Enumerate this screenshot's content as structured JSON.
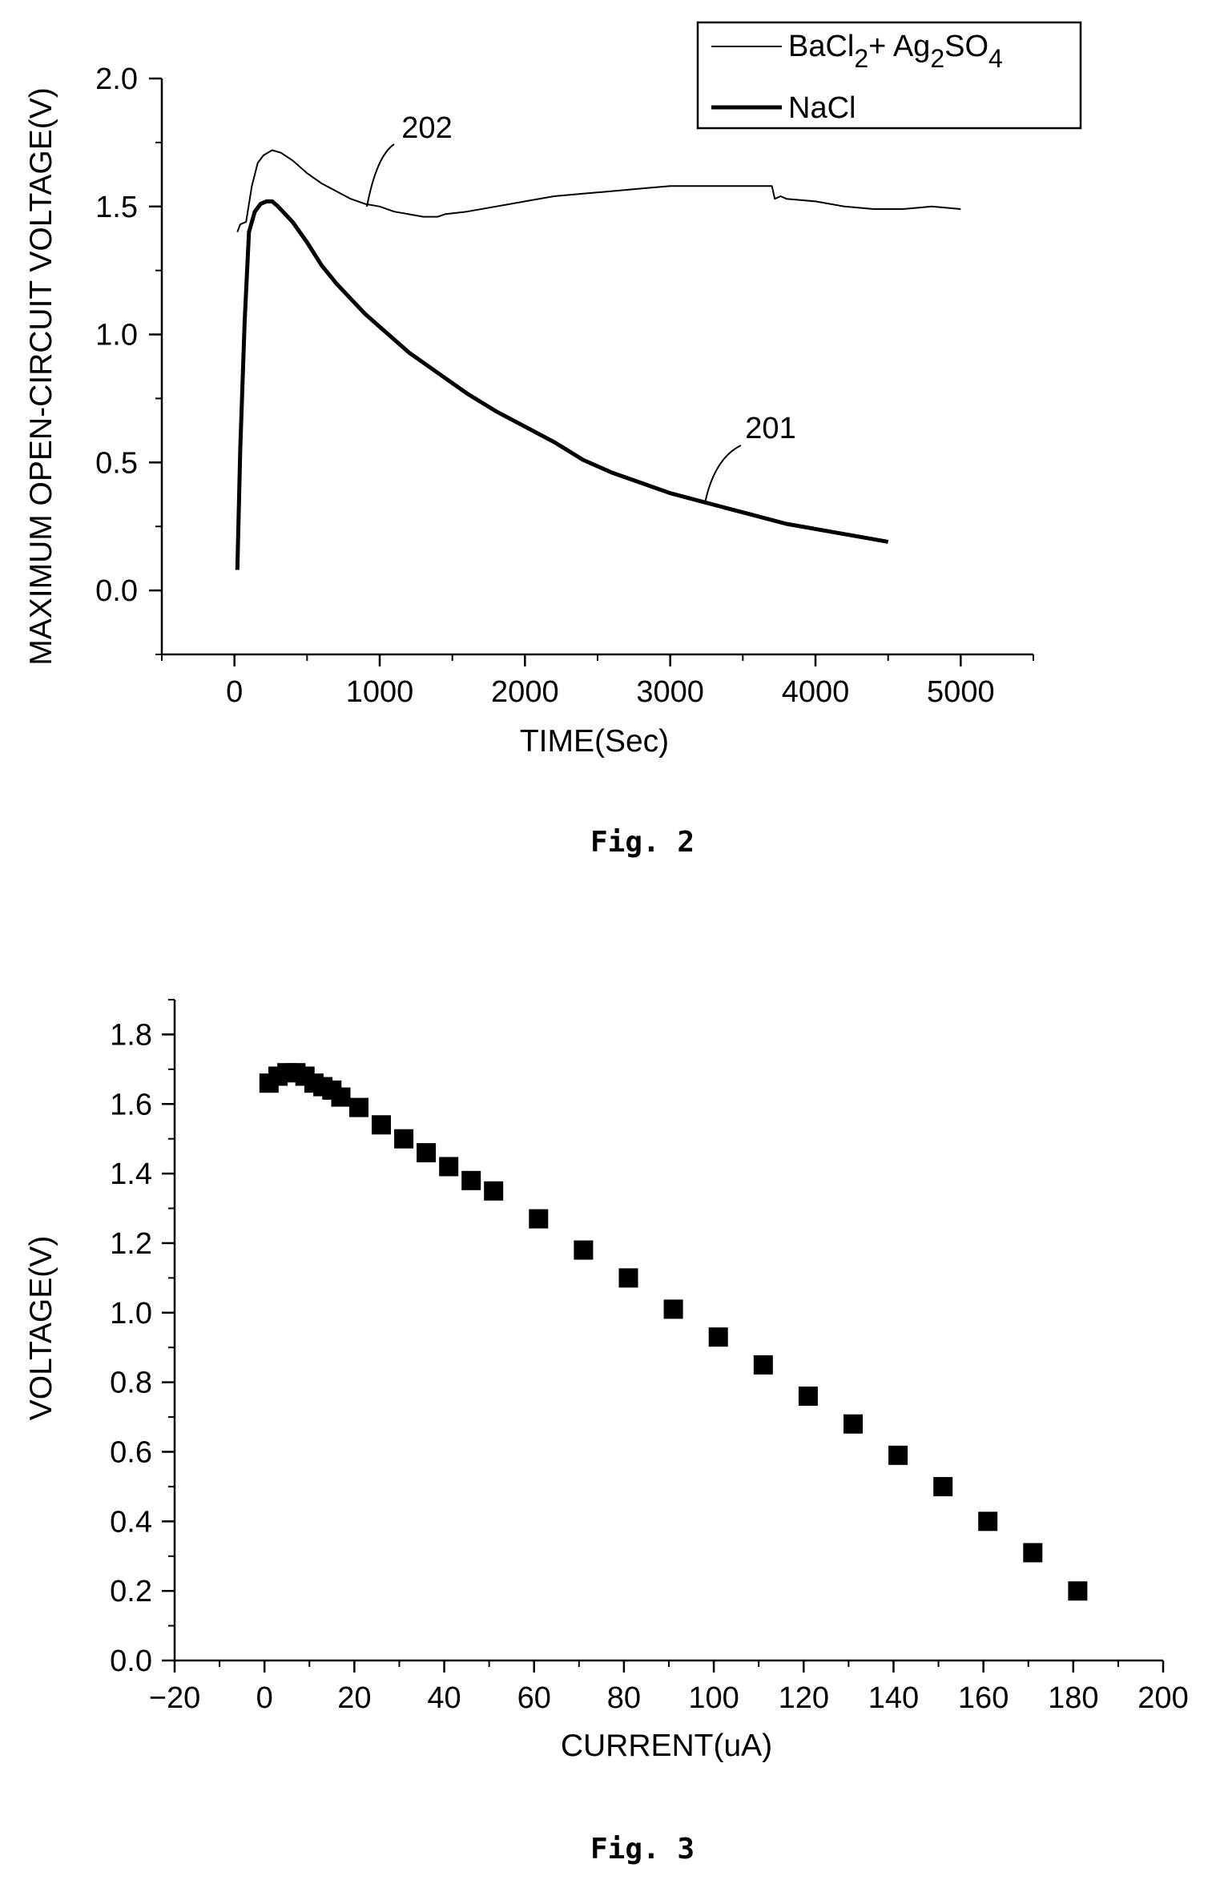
{
  "figures": {
    "fig2": {
      "caption": "Fig. 2"
    },
    "fig3": {
      "caption": "Fig. 3"
    }
  },
  "chart_data": [
    {
      "type": "line",
      "xlabel": "TIME(Sec)",
      "ylabel": "MAXIMUM OPEN-CIRCUIT VOLTAGE(V)",
      "xlim": [
        -500,
        5500
      ],
      "ylim": [
        -0.25,
        2.0
      ],
      "xticks": [
        0,
        1000,
        2000,
        3000,
        4000,
        5000
      ],
      "xtick_labels": [
        "0",
        "1000",
        "2000",
        "3000",
        "4000",
        "5000"
      ],
      "yticks": [
        0.0,
        0.5,
        1.0,
        1.5,
        2.0
      ],
      "ytick_labels": [
        "0.0",
        "0.5",
        "1.0",
        "1.5",
        "2.0"
      ],
      "grid": false,
      "legend_position": "top-right",
      "series": [
        {
          "name": "BaCl2+ Ag2SO4",
          "legend_parts": {
            "t1": "BaCl",
            "s1": "2",
            "t2": "+ Ag",
            "s2": "2",
            "t3": "SO",
            "s3": "4"
          },
          "callout": "202",
          "style": "thin",
          "x": [
            20,
            40,
            80,
            120,
            160,
            200,
            260,
            320,
            400,
            500,
            600,
            700,
            800,
            900,
            1000,
            1100,
            1200,
            1300,
            1400,
            1450,
            1600,
            1800,
            2000,
            2200,
            2400,
            2600,
            2800,
            3000,
            3200,
            3400,
            3700,
            3720,
            3760,
            3800,
            4000,
            4200,
            4400,
            4600,
            4800,
            5000
          ],
          "y": [
            1.4,
            1.43,
            1.44,
            1.58,
            1.67,
            1.7,
            1.72,
            1.71,
            1.68,
            1.63,
            1.59,
            1.56,
            1.53,
            1.51,
            1.5,
            1.48,
            1.47,
            1.46,
            1.46,
            1.47,
            1.48,
            1.5,
            1.52,
            1.54,
            1.55,
            1.56,
            1.57,
            1.58,
            1.58,
            1.58,
            1.58,
            1.53,
            1.54,
            1.53,
            1.52,
            1.5,
            1.49,
            1.49,
            1.5,
            1.49
          ]
        },
        {
          "name": "NaCl",
          "callout": "201",
          "style": "thick",
          "x": [
            20,
            40,
            70,
            100,
            140,
            180,
            220,
            260,
            300,
            400,
            500,
            600,
            700,
            800,
            900,
            1000,
            1200,
            1400,
            1600,
            1800,
            2000,
            2200,
            2400,
            2600,
            2800,
            3000,
            3200,
            3400,
            3600,
            3800,
            4000,
            4200,
            4400,
            4500
          ],
          "y": [
            0.08,
            0.55,
            1.05,
            1.4,
            1.48,
            1.51,
            1.52,
            1.52,
            1.5,
            1.44,
            1.36,
            1.27,
            1.2,
            1.14,
            1.08,
            1.03,
            0.93,
            0.85,
            0.77,
            0.7,
            0.64,
            0.58,
            0.51,
            0.46,
            0.42,
            0.38,
            0.35,
            0.32,
            0.29,
            0.26,
            0.24,
            0.22,
            0.2,
            0.19
          ]
        }
      ]
    },
    {
      "type": "scatter",
      "xlabel": "CURRENT(uA)",
      "ylabel": "VOLTAGE(V)",
      "xlim": [
        -20,
        200
      ],
      "ylim": [
        0.0,
        1.9
      ],
      "xticks": [
        -20,
        0,
        20,
        40,
        60,
        80,
        100,
        120,
        140,
        160,
        180,
        200
      ],
      "xtick_labels": [
        "-20",
        "0",
        "20",
        "40",
        "60",
        "80",
        "100",
        "120",
        "140",
        "160",
        "180",
        "200"
      ],
      "yticks": [
        0.0,
        0.2,
        0.4,
        0.6,
        0.8,
        1.0,
        1.2,
        1.4,
        1.6,
        1.8
      ],
      "ytick_labels": [
        "0.0",
        "0.2",
        "0.4",
        "0.6",
        "0.8",
        "1.0",
        "1.2",
        "1.4",
        "1.6",
        "1.8"
      ],
      "grid": false,
      "marker": "square",
      "x": [
        1,
        3,
        5,
        7,
        9,
        11,
        13,
        15,
        17,
        21,
        26,
        31,
        36,
        41,
        46,
        51,
        61,
        71,
        81,
        91,
        101,
        111,
        121,
        131,
        141,
        151,
        161,
        171,
        181
      ],
      "y": [
        1.66,
        1.68,
        1.69,
        1.69,
        1.68,
        1.66,
        1.65,
        1.64,
        1.62,
        1.59,
        1.54,
        1.5,
        1.46,
        1.42,
        1.38,
        1.35,
        1.27,
        1.18,
        1.1,
        1.01,
        0.93,
        0.85,
        0.76,
        0.68,
        0.59,
        0.5,
        0.4,
        0.31,
        0.2
      ]
    }
  ]
}
